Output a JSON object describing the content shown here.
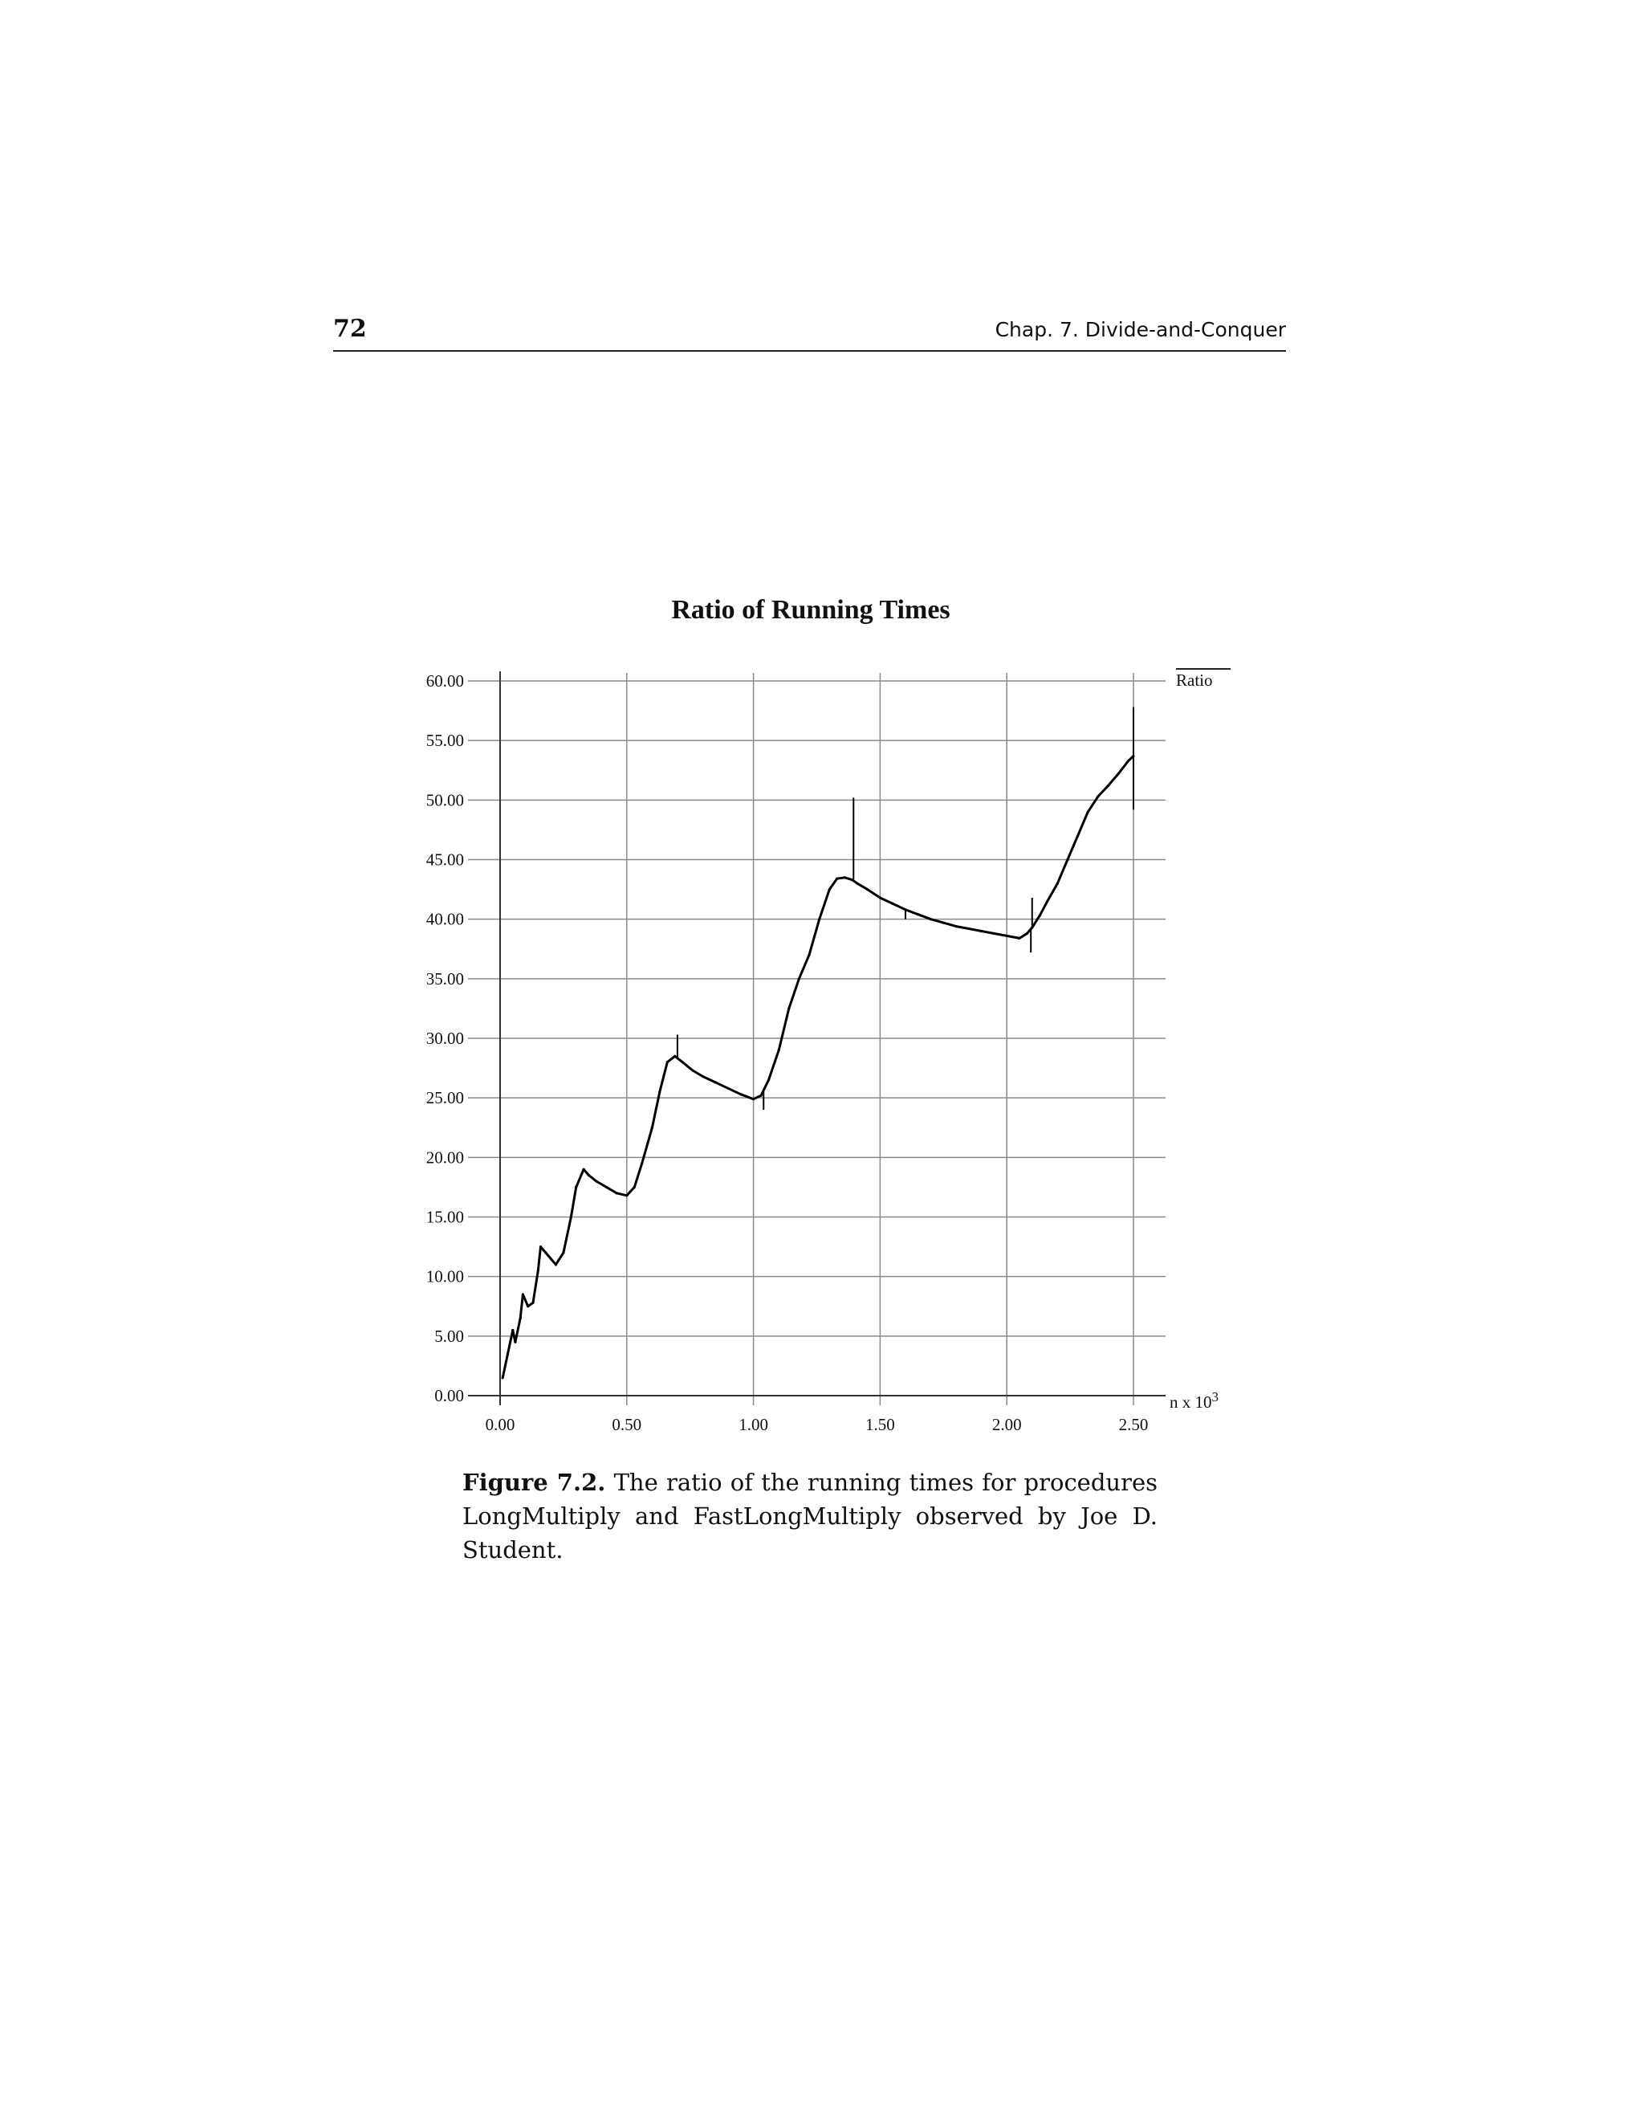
{
  "header": {
    "page_number": "72",
    "running_head": "Chap. 7. Divide-and-Conquer"
  },
  "chart_data": {
    "type": "line",
    "title": "Ratio of Running Times",
    "xlabel": "",
    "x_unit_label": "n x 10",
    "x_unit_exponent": "3",
    "ylabel": "",
    "xlim": [
      0,
      2.5
    ],
    "ylim": [
      0,
      60
    ],
    "x_ticks": [
      "0.00",
      "0.50",
      "1.00",
      "1.50",
      "2.00",
      "2.50"
    ],
    "y_ticks": [
      "0.00",
      "5.00",
      "10.00",
      "15.00",
      "20.00",
      "25.00",
      "30.00",
      "35.00",
      "40.00",
      "45.00",
      "50.00",
      "55.00",
      "60.00"
    ],
    "grid": true,
    "legend_position": "top-right",
    "series": [
      {
        "name": "Ratio",
        "color": "#000000",
        "x": [
          0.01,
          0.03,
          0.05,
          0.06,
          0.08,
          0.09,
          0.11,
          0.13,
          0.15,
          0.16,
          0.18,
          0.2,
          0.22,
          0.25,
          0.28,
          0.3,
          0.33,
          0.35,
          0.38,
          0.42,
          0.46,
          0.5,
          0.53,
          0.56,
          0.6,
          0.63,
          0.66,
          0.69,
          0.72,
          0.76,
          0.8,
          0.85,
          0.9,
          0.95,
          1.0,
          1.03,
          1.06,
          1.1,
          1.14,
          1.18,
          1.22,
          1.26,
          1.3,
          1.33,
          1.36,
          1.39,
          1.41,
          1.45,
          1.5,
          1.55,
          1.6,
          1.65,
          1.7,
          1.75,
          1.8,
          1.85,
          1.9,
          1.95,
          2.0,
          2.05,
          2.08,
          2.1,
          2.13,
          2.16,
          2.2,
          2.24,
          2.28,
          2.32,
          2.36,
          2.4,
          2.44,
          2.48,
          2.5
        ],
        "y": [
          1.5,
          3.5,
          5.5,
          4.5,
          6.5,
          8.5,
          7.5,
          7.8,
          10.5,
          12.5,
          12.0,
          11.5,
          11.0,
          12.0,
          15.0,
          17.5,
          19.0,
          18.5,
          18.0,
          17.5,
          17.0,
          16.8,
          17.5,
          19.5,
          22.5,
          25.5,
          28.0,
          28.5,
          28.0,
          27.3,
          26.8,
          26.3,
          25.8,
          25.3,
          24.9,
          25.2,
          26.5,
          29.0,
          32.5,
          35.0,
          37.0,
          40.0,
          42.5,
          43.4,
          43.5,
          43.3,
          43.0,
          42.5,
          41.8,
          41.3,
          40.8,
          40.4,
          40.0,
          39.7,
          39.4,
          39.2,
          39.0,
          38.8,
          38.6,
          38.4,
          38.8,
          39.3,
          40.3,
          41.5,
          43.0,
          45.0,
          47.0,
          49.0,
          50.3,
          51.2,
          52.2,
          53.3,
          53.7
        ]
      }
    ],
    "spikes": [
      {
        "x": 0.7,
        "y": 30.3
      },
      {
        "x": 1.04,
        "y": 24.0
      },
      {
        "x": 1.395,
        "y": 50.2
      },
      {
        "x": 1.6,
        "y": 40.0
      },
      {
        "x": 2.095,
        "y": 37.2
      },
      {
        "x": 2.1,
        "y": 41.8
      },
      {
        "x": 2.5,
        "y": 57.8
      },
      {
        "x": 2.5,
        "y": 49.2
      }
    ]
  },
  "caption": {
    "label": "Figure 7.2.",
    "text": "The ratio of the running times for procedures LongMultiply and FastLongMultiply observed by Joe D. Student."
  }
}
